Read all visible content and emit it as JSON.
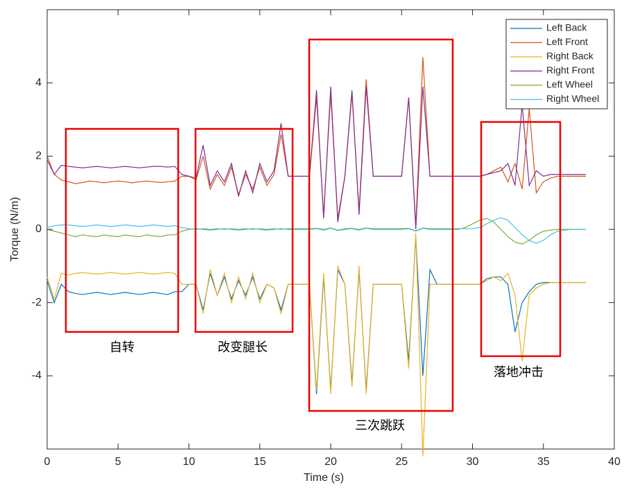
{
  "chart_data": {
    "type": "line",
    "xlabel": "Time (s)",
    "ylabel": "Torque (N/m)",
    "xlim": [
      0,
      40
    ],
    "xticks": [
      0,
      5,
      10,
      15,
      20,
      25,
      30,
      35,
      40
    ],
    "ylim": [
      -6,
      6
    ],
    "yticks": [
      -4,
      -2,
      0,
      2,
      4
    ],
    "legend": "upper right",
    "annotations": [
      "自转",
      "改变腿长",
      "三次跳跃",
      "落地冲击"
    ],
    "x": [
      0,
      0.5,
      1,
      1.5,
      2,
      2.5,
      3,
      3.5,
      4,
      4.5,
      5,
      5.5,
      6,
      6.5,
      7,
      7.5,
      8,
      8.5,
      9,
      9.5,
      10,
      10.5,
      11,
      11.5,
      12,
      12.5,
      13,
      13.5,
      14,
      14.5,
      15,
      15.5,
      16,
      16.5,
      17,
      17.5,
      18,
      18.5,
      19,
      19.5,
      20,
      20.5,
      21,
      21.5,
      22,
      22.5,
      23,
      23.5,
      24,
      24.5,
      25,
      25.5,
      26,
      26.5,
      27,
      27.5,
      28,
      28.5,
      29,
      29.5,
      30,
      30.5,
      31,
      31.5,
      32,
      32.5,
      33,
      33.5,
      34,
      34.5,
      35,
      35.5,
      36,
      36.5,
      37,
      37.5,
      38
    ],
    "series": [
      {
        "name": "Left Back",
        "color": "#0072BD",
        "values": [
          -1.4,
          -2.0,
          -1.5,
          -1.7,
          -1.75,
          -1.78,
          -1.75,
          -1.72,
          -1.75,
          -1.78,
          -1.75,
          -1.72,
          -1.75,
          -1.78,
          -1.75,
          -1.72,
          -1.75,
          -1.78,
          -1.7,
          -1.7,
          -1.5,
          -1.5,
          -2.2,
          -1.2,
          -1.8,
          -1.3,
          -1.9,
          -1.4,
          -1.8,
          -1.3,
          -1.9,
          -1.5,
          -1.6,
          -2.2,
          -1.5,
          -1.5,
          -1.5,
          -1.5,
          -4.5,
          -1.3,
          -4.4,
          -1.1,
          -1.5,
          -4.2,
          -1.1,
          -4.4,
          -1.5,
          -1.5,
          -1.5,
          -1.5,
          -1.5,
          -3.6,
          -0.2,
          -4.0,
          -1.1,
          -1.5,
          -1.5,
          -1.5,
          -1.5,
          -1.5,
          -1.5,
          -1.5,
          -1.35,
          -1.3,
          -1.3,
          -1.5,
          -2.8,
          -2.0,
          -1.7,
          -1.5,
          -1.45,
          -1.45,
          -1.45,
          -1.45,
          -1.45,
          -1.45,
          -1.45
        ]
      },
      {
        "name": "Left Front",
        "color": "#D95319",
        "values": [
          2.0,
          1.5,
          1.35,
          1.3,
          1.25,
          1.28,
          1.32,
          1.3,
          1.27,
          1.3,
          1.32,
          1.3,
          1.27,
          1.3,
          1.32,
          1.3,
          1.28,
          1.3,
          1.32,
          1.45,
          1.45,
          1.35,
          2.0,
          1.1,
          1.5,
          1.2,
          1.7,
          0.95,
          1.5,
          1.1,
          1.7,
          1.2,
          1.5,
          2.6,
          1.45,
          1.45,
          1.45,
          1.45,
          3.6,
          0.4,
          3.7,
          0.3,
          1.45,
          3.7,
          0.5,
          4.1,
          1.45,
          1.45,
          1.45,
          1.45,
          1.45,
          3.6,
          0.1,
          4.7,
          1.45,
          1.45,
          1.45,
          1.45,
          1.45,
          1.45,
          1.45,
          1.45,
          1.5,
          1.6,
          1.7,
          1.3,
          1.8,
          1.1,
          3.3,
          1.0,
          1.3,
          1.4,
          1.45,
          1.45,
          1.45,
          1.45,
          1.45
        ]
      },
      {
        "name": "Right Back",
        "color": "#EDB120",
        "values": [
          -1.3,
          -1.9,
          -1.2,
          -1.25,
          -1.2,
          -1.18,
          -1.2,
          -1.22,
          -1.2,
          -1.18,
          -1.2,
          -1.22,
          -1.2,
          -1.18,
          -1.2,
          -1.22,
          -1.2,
          -1.18,
          -1.2,
          -1.5,
          -1.5,
          -1.5,
          -2.3,
          -1.1,
          -1.8,
          -1.2,
          -2.0,
          -1.3,
          -1.9,
          -1.2,
          -2.0,
          -1.5,
          -1.6,
          -2.3,
          -1.5,
          -1.5,
          -1.5,
          -1.5,
          -4.4,
          -1.2,
          -4.5,
          -1.0,
          -1.5,
          -4.3,
          -1.0,
          -4.5,
          -1.5,
          -1.5,
          -1.5,
          -1.5,
          -1.5,
          -3.8,
          -0.1,
          -6.2,
          -1.5,
          -1.5,
          -1.5,
          -1.5,
          -1.5,
          -1.5,
          -1.5,
          -1.5,
          -1.4,
          -1.3,
          -1.4,
          -1.2,
          -1.8,
          -3.6,
          -1.8,
          -1.6,
          -1.5,
          -1.45,
          -1.45,
          -1.45,
          -1.45,
          -1.45,
          -1.45
        ]
      },
      {
        "name": "Right Front",
        "color": "#7E2F8E",
        "values": [
          1.9,
          1.5,
          1.75,
          1.72,
          1.7,
          1.68,
          1.7,
          1.72,
          1.7,
          1.68,
          1.7,
          1.72,
          1.7,
          1.68,
          1.7,
          1.72,
          1.72,
          1.7,
          1.72,
          1.5,
          1.45,
          1.4,
          2.3,
          1.2,
          1.6,
          1.3,
          1.8,
          0.9,
          1.6,
          1.0,
          1.8,
          1.3,
          1.6,
          2.9,
          1.45,
          1.45,
          1.45,
          1.45,
          3.8,
          0.3,
          3.9,
          0.2,
          1.45,
          3.8,
          0.4,
          3.9,
          1.45,
          1.45,
          1.45,
          1.45,
          1.45,
          3.6,
          0,
          3.9,
          1.45,
          1.45,
          1.45,
          1.45,
          1.45,
          1.45,
          1.45,
          1.45,
          1.5,
          1.55,
          1.6,
          1.8,
          1.2,
          3.4,
          1.2,
          1.6,
          1.45,
          1.5,
          1.5,
          1.5,
          1.5,
          1.5,
          1.5
        ]
      },
      {
        "name": "Left Wheel",
        "color": "#77AC30",
        "values": [
          0,
          -0.05,
          -0.1,
          -0.15,
          -0.2,
          -0.15,
          -0.18,
          -0.2,
          -0.15,
          -0.18,
          -0.2,
          -0.15,
          -0.18,
          -0.2,
          -0.15,
          -0.18,
          -0.2,
          -0.15,
          -0.15,
          -0.05,
          0,
          0.02,
          0,
          -0.02,
          0,
          0.02,
          0,
          -0.02,
          0,
          0.02,
          0,
          -0.02,
          0,
          0.02,
          0,
          0,
          0,
          0,
          0.02,
          -0.02,
          0.03,
          -0.03,
          0,
          0.02,
          -0.02,
          0.03,
          0,
          0,
          0,
          0,
          0,
          0.02,
          -0.05,
          0.03,
          0,
          0,
          0,
          0,
          0,
          0.05,
          0.15,
          0.25,
          0.3,
          0.2,
          0,
          -0.2,
          -0.35,
          -0.4,
          -0.3,
          -0.15,
          -0.05,
          -0.02,
          0,
          0,
          0,
          0,
          0
        ]
      },
      {
        "name": "Right Wheel",
        "color": "#4DBEEE",
        "values": [
          0.05,
          0.1,
          0.12,
          0.12,
          0.1,
          0.08,
          0.1,
          0.12,
          0.1,
          0.08,
          0.1,
          0.12,
          0.1,
          0.08,
          0.1,
          0.12,
          0.1,
          0.08,
          0.1,
          0.05,
          0.02,
          0,
          0.02,
          0,
          0.02,
          0,
          0.02,
          0,
          0.02,
          0,
          0.02,
          0,
          0.02,
          0,
          0.02,
          0.02,
          0.02,
          0.02,
          0.03,
          0,
          0.04,
          -0.02,
          0.02,
          0.03,
          0,
          0.04,
          0.02,
          0.02,
          0.02,
          0.02,
          0.02,
          0.03,
          -0.04,
          0.04,
          0.02,
          0.02,
          0.02,
          0.02,
          0.02,
          0.02,
          0.02,
          0.05,
          0.15,
          0.25,
          0.32,
          0.25,
          0.05,
          -0.15,
          -0.3,
          -0.38,
          -0.3,
          -0.15,
          -0.05,
          -0.02,
          0,
          0,
          0
        ]
      }
    ]
  }
}
